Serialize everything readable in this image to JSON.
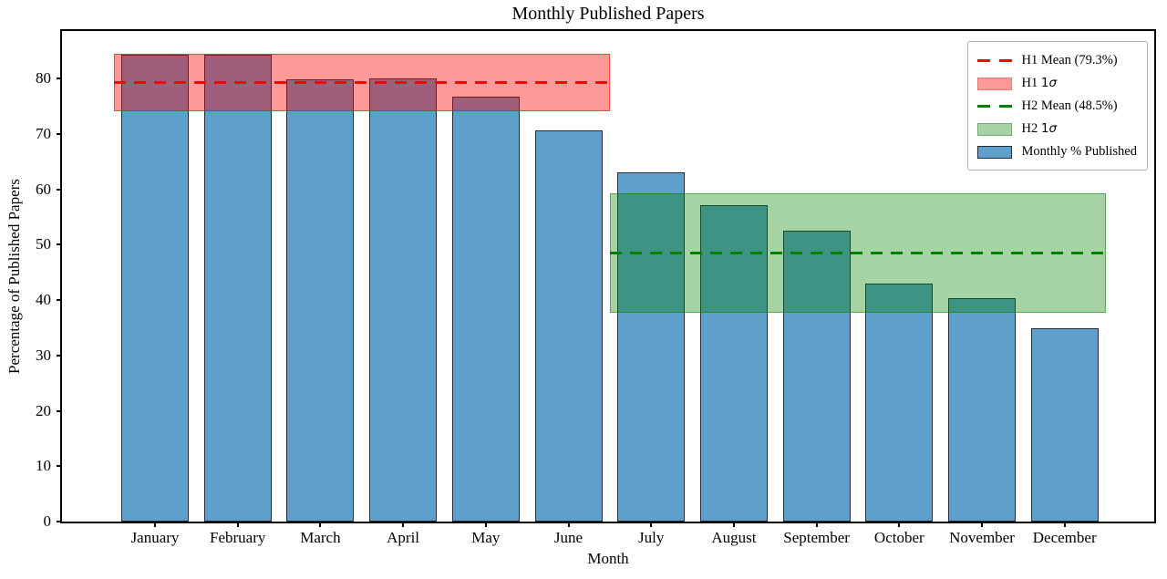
{
  "figure": {
    "title": "Monthly Published Papers",
    "xlabel": "Month",
    "ylabel": "Percentage of Published Papers"
  },
  "chart_data": {
    "type": "bar",
    "title": "Monthly Published Papers",
    "xlabel": "Month",
    "ylabel": "Percentage of Published Papers",
    "categories": [
      "January",
      "February",
      "March",
      "April",
      "May",
      "June",
      "July",
      "August",
      "September",
      "October",
      "November",
      "December"
    ],
    "values": [
      84.4,
      84.4,
      79.8,
      80.0,
      76.7,
      70.6,
      63.0,
      57.2,
      52.6,
      43.0,
      40.3,
      34.9
    ],
    "ylim": [
      0,
      88.6
    ],
    "yticks": [
      0,
      10,
      20,
      30,
      40,
      50,
      60,
      70,
      80
    ],
    "grid": false,
    "legend_position": "upper right",
    "bar_color": "#5f9fcc",
    "bar_edge_color": "#262b33",
    "mean_lines": [
      {
        "name": "H1 Mean",
        "value": 79.3,
        "from_index": -0.5,
        "to_index": 5.5,
        "color": "#ff0000"
      },
      {
        "name": "H2 Mean",
        "value": 48.5,
        "from_index": 5.5,
        "to_index": 11.5,
        "color": "#008000"
      }
    ],
    "sigma_bands": [
      {
        "name": "H1 1σ",
        "low": 74.1,
        "high": 84.5,
        "from_index": -0.5,
        "to_index": 5.5,
        "fill": "rgba(255,0,0,0.40)",
        "edge": "rgba(255,0,0,0.55)"
      },
      {
        "name": "H2 1σ",
        "low": 37.7,
        "high": 59.3,
        "from_index": 5.5,
        "to_index": 11.5,
        "fill": "rgba(0,128,0,0.35)",
        "edge": "rgba(0,128,0,0.50)"
      }
    ]
  },
  "legend": {
    "items": [
      {
        "swatch": "dashed-line",
        "color": "#ff0000",
        "label_text": "H1 Mean (79.3%)",
        "label_math": ""
      },
      {
        "swatch": "patch",
        "fill": "#ff9999",
        "edge": "#e87c7c",
        "label_text": "H1 ",
        "label_math": "1σ"
      },
      {
        "swatch": "dashed-line",
        "color": "#008000",
        "label_text": "H2 Mean (48.5%)",
        "label_math": ""
      },
      {
        "swatch": "patch",
        "fill": "#a6d2a6",
        "edge": "#74ab74",
        "label_text": "H2 ",
        "label_math": "1σ"
      },
      {
        "swatch": "patch",
        "fill": "#5f9fcc",
        "edge": "#262b33",
        "label_text": "Monthly % Published",
        "label_math": ""
      }
    ]
  }
}
